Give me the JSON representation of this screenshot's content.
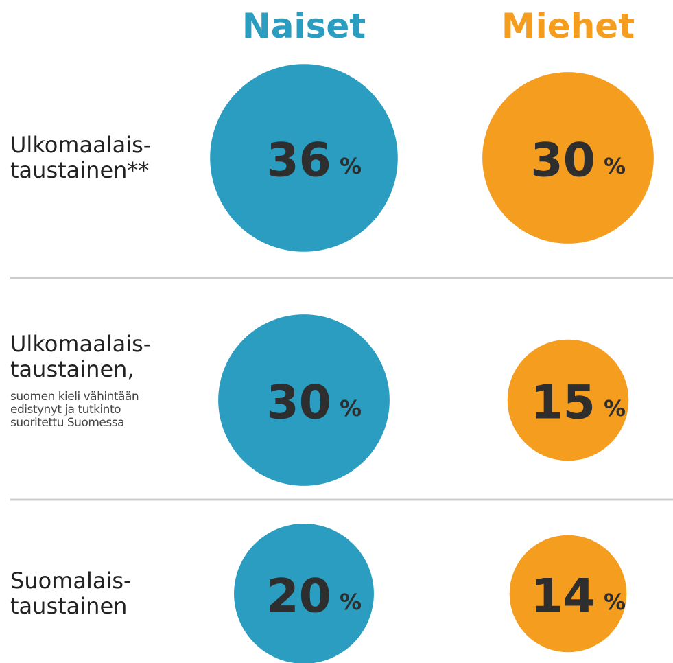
{
  "chart_data": {
    "type": "bubble",
    "categories": [
      "Ulkomaalais-\ntaustainen**",
      "Ulkomaalais-\ntaustainen,",
      "Suomalais-\ntaustainen"
    ],
    "category_notes": [
      null,
      "suomen kieli vähintään\nedistynyt ja tutkinto\nsuoritettu Suomessa",
      null
    ],
    "unit": "%",
    "series": [
      {
        "name": "Naiset",
        "color": "#2a9dc1",
        "values": [
          36,
          30,
          20
        ]
      },
      {
        "name": "Miehet",
        "color": "#f59d1f",
        "values": [
          30,
          15,
          14
        ]
      }
    ]
  }
}
